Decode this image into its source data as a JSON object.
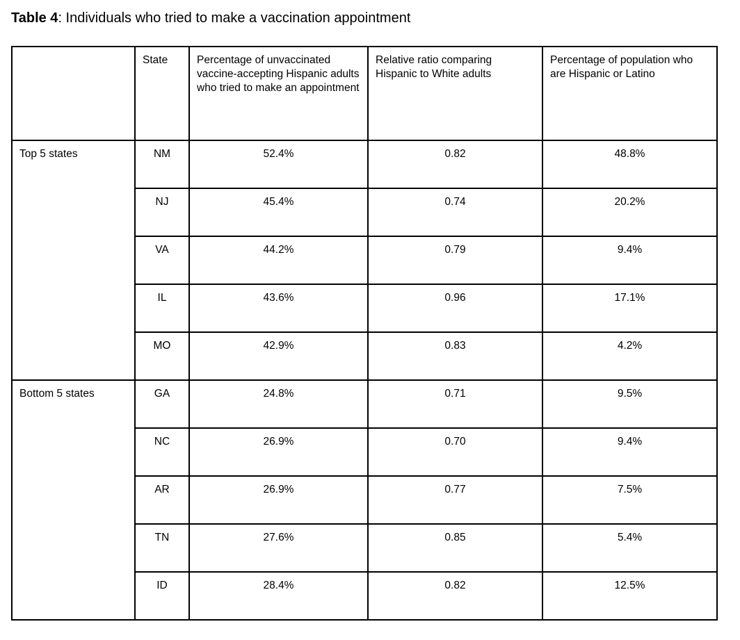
{
  "caption": {
    "bold": "Table 4",
    "rest": ": Individuals who tried to make a vaccination appointment"
  },
  "table": {
    "columns": {
      "group": "",
      "state": "State",
      "tried": "Percentage of unvaccinated vaccine-accepting Hispanic adults who tried to make an appointment",
      "ratio": "Relative ratio comparing Hispanic to White adults",
      "hispanic": "Percentage of population who are Hispanic or Latino"
    },
    "groups": [
      {
        "label": "Top 5 states",
        "rows": [
          {
            "state": "NM",
            "tried": "52.4%",
            "ratio": "0.82",
            "hispanic": "48.8%"
          },
          {
            "state": "NJ",
            "tried": "45.4%",
            "ratio": "0.74",
            "hispanic": "20.2%"
          },
          {
            "state": "VA",
            "tried": "44.2%",
            "ratio": "0.79",
            "hispanic": "9.4%"
          },
          {
            "state": "IL",
            "tried": "43.6%",
            "ratio": "0.96",
            "hispanic": "17.1%"
          },
          {
            "state": "MO",
            "tried": "42.9%",
            "ratio": "0.83",
            "hispanic": "4.2%"
          }
        ]
      },
      {
        "label": "Bottom 5 states",
        "rows": [
          {
            "state": "GA",
            "tried": "24.8%",
            "ratio": "0.71",
            "hispanic": "9.5%"
          },
          {
            "state": "NC",
            "tried": "26.9%",
            "ratio": "0.70",
            "hispanic": "9.4%"
          },
          {
            "state": "AR",
            "tried": "26.9%",
            "ratio": "0.77",
            "hispanic": "7.5%"
          },
          {
            "state": "TN",
            "tried": "27.6%",
            "ratio": "0.85",
            "hispanic": "5.4%"
          },
          {
            "state": "ID",
            "tried": "28.4%",
            "ratio": "0.82",
            "hispanic": "12.5%"
          }
        ]
      }
    ]
  }
}
